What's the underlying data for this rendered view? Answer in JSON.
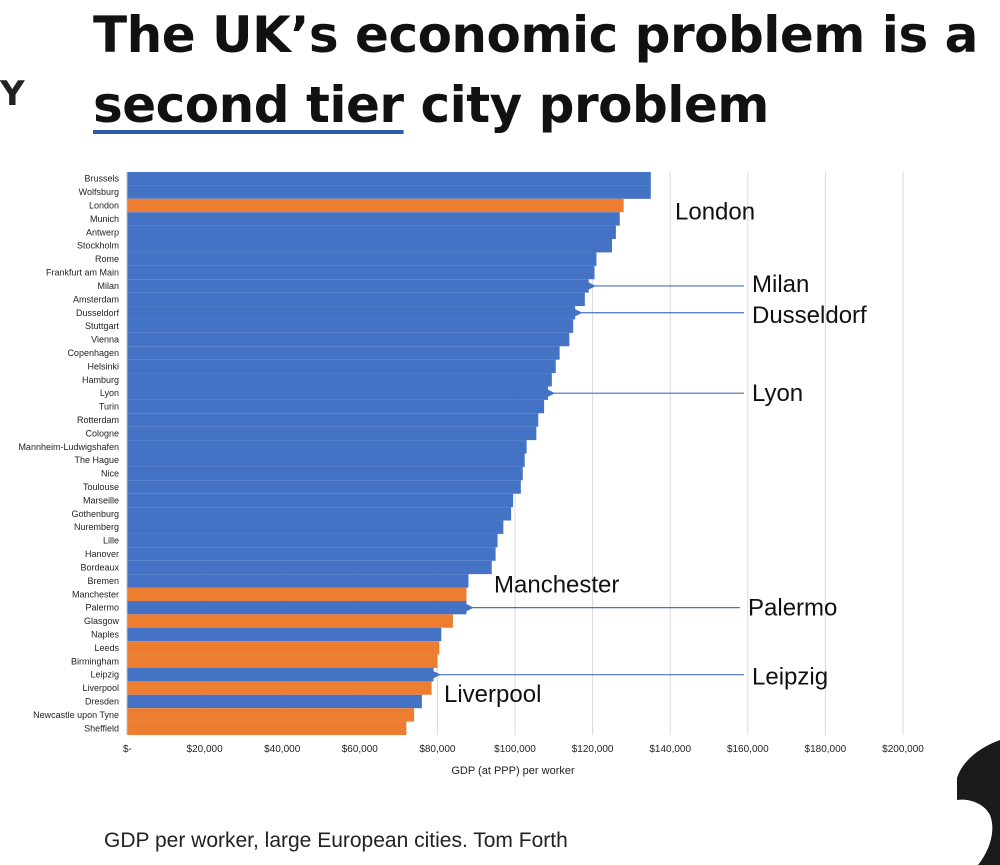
{
  "header": {
    "title_pre": "The UK’s economic problem is a",
    "title_highlight": "second tier",
    "title_post": " city problem",
    "side_letter": "Y"
  },
  "caption": "GDP per worker, large European cities.  Tom Forth",
  "colors": {
    "continental": "#4472c4",
    "uk": "#ed7d31",
    "arrow": "#4472c4",
    "grid": "#d9d9d9"
  },
  "chart_data": {
    "type": "bar",
    "orientation": "horizontal",
    "xlabel": "GDP (at PPP) per worker",
    "xlim": [
      0,
      200000
    ],
    "xticks": [
      "$-",
      "$20,000",
      "$40,000",
      "$60,000",
      "$80,000",
      "$100,000",
      "$120,000",
      "$140,000",
      "$160,000",
      "$180,000",
      "$200,000"
    ],
    "grid": true,
    "categories": [
      "Brussels",
      "Wolfsburg",
      "London",
      "Munich",
      "Antwerp",
      "Stockholm",
      "Rome",
      "Frankfurt am Main",
      "Milan",
      "Amsterdam",
      "Dusseldorf",
      "Stuttgart",
      "Vienna",
      "Copenhagen",
      "Helsinki",
      "Hamburg",
      "Lyon",
      "Turin",
      "Rotterdam",
      "Cologne",
      "Mannheim-Ludwigshafen",
      "The Hague",
      "Nice",
      "Toulouse",
      "Marseille",
      "Gothenburg",
      "Nuremberg",
      "Lille",
      "Hanover",
      "Bordeaux",
      "Bremen",
      "Manchester",
      "Palermo",
      "Glasgow",
      "Naples",
      "Leeds",
      "Birmingham",
      "Leipzig",
      "Liverpool",
      "Dresden",
      "Newcastle upon Tyne",
      "Sheffield"
    ],
    "values": [
      135000,
      135000,
      128000,
      127000,
      126000,
      125000,
      121000,
      120500,
      119000,
      118000,
      115500,
      115000,
      114000,
      111500,
      110500,
      109500,
      108500,
      107500,
      106000,
      105500,
      103000,
      102500,
      102000,
      101500,
      99500,
      99000,
      97000,
      95500,
      95000,
      94000,
      88000,
      87500,
      87500,
      84000,
      81000,
      80500,
      80000,
      79000,
      78500,
      76000,
      74000,
      72000
    ],
    "uk": [
      false,
      false,
      true,
      false,
      false,
      false,
      false,
      false,
      false,
      false,
      false,
      false,
      false,
      false,
      false,
      false,
      false,
      false,
      false,
      false,
      false,
      false,
      false,
      false,
      false,
      false,
      false,
      false,
      false,
      false,
      false,
      true,
      false,
      true,
      false,
      true,
      true,
      false,
      true,
      false,
      true,
      true
    ],
    "annotations": [
      {
        "text": "London",
        "target": "London",
        "arrow": false
      },
      {
        "text": "Milan",
        "target": "Milan",
        "arrow": true
      },
      {
        "text": "Dusseldorf",
        "target": "Dusseldorf",
        "arrow": true
      },
      {
        "text": "Lyon",
        "target": "Lyon",
        "arrow": true
      },
      {
        "text": "Manchester",
        "target": "Manchester",
        "arrow": false
      },
      {
        "text": "Palermo",
        "target": "Palermo",
        "arrow": true
      },
      {
        "text": "Leipzig",
        "target": "Leipzig",
        "arrow": true
      },
      {
        "text": "Liverpool",
        "target": "Liverpool",
        "arrow": false
      }
    ]
  }
}
